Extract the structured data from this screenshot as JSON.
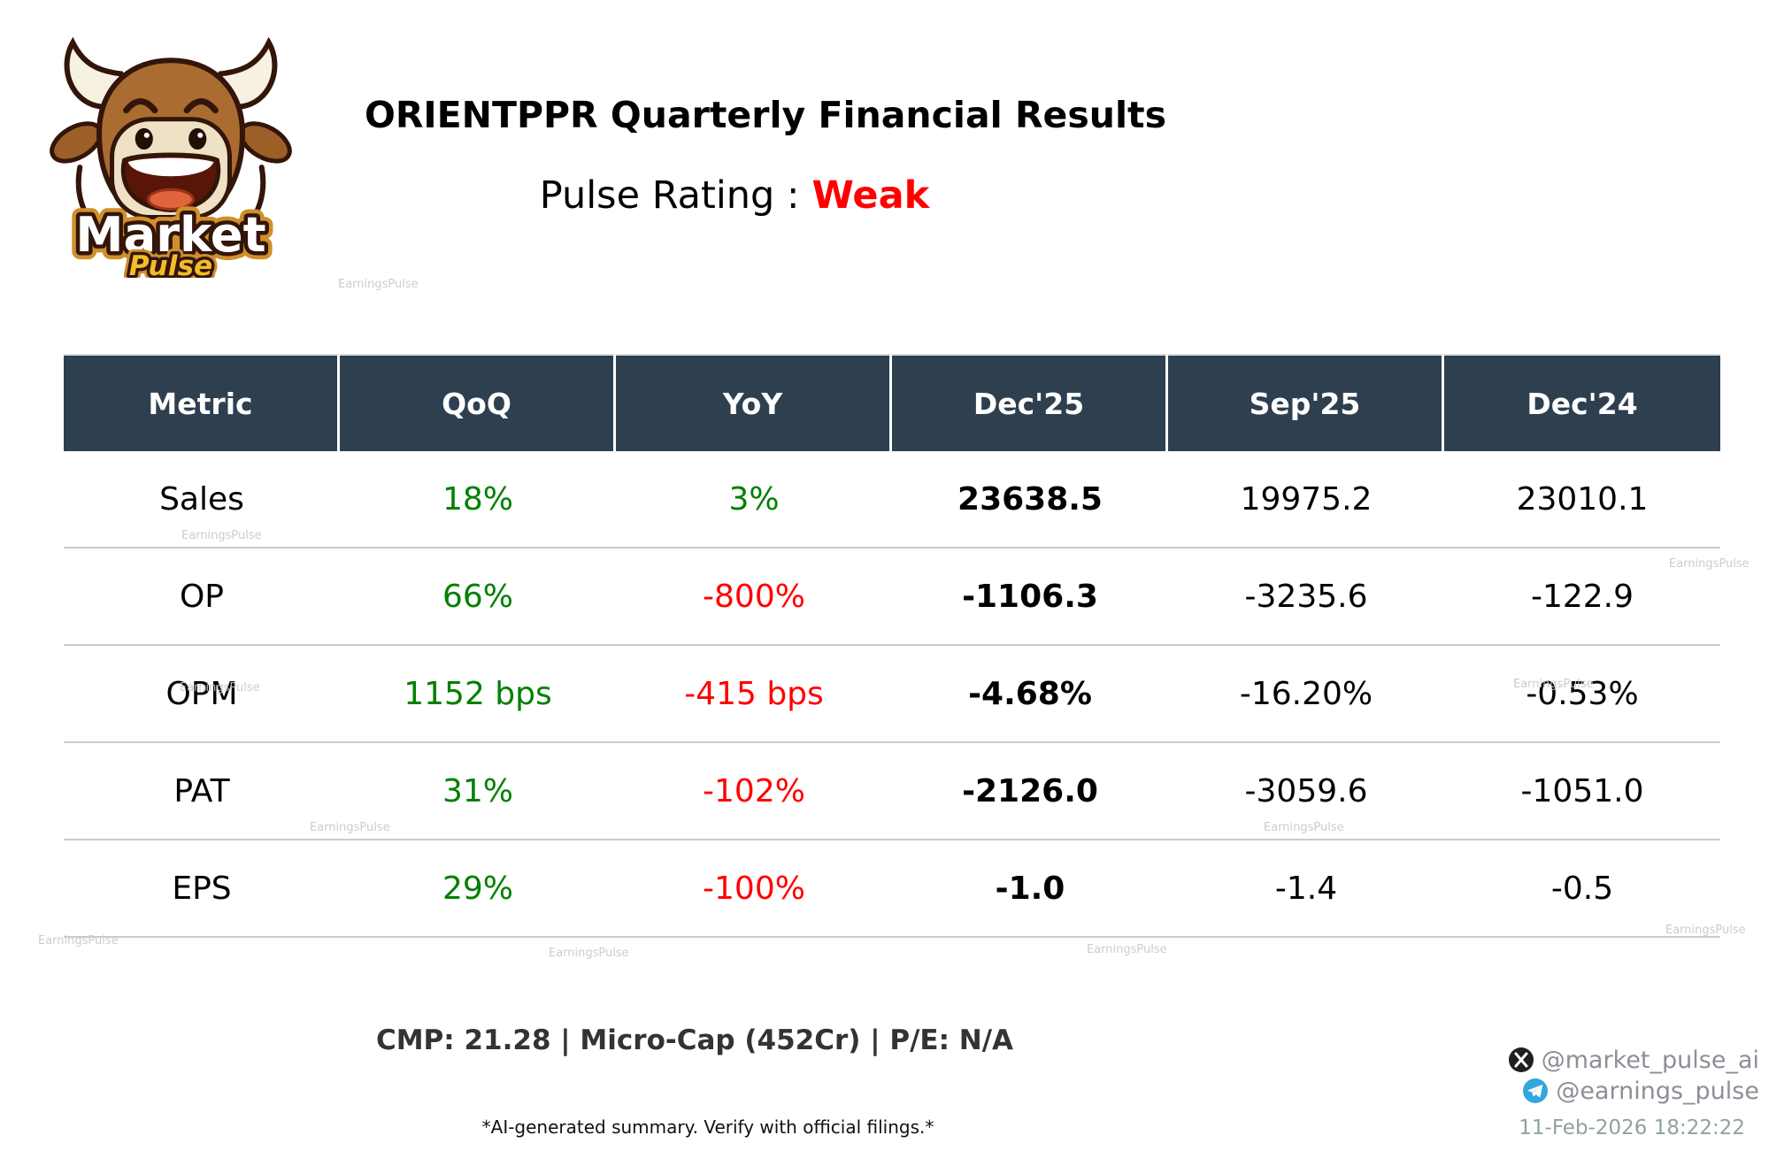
{
  "watermark": {
    "text": "EarningsPulse"
  },
  "header": {
    "title": "ORIENTPPR Quarterly Financial Results",
    "rating_label": "Pulse Rating :",
    "rating_value": "Weak",
    "rating_color": "#ff0000"
  },
  "logo": {
    "word1": "Market",
    "word2": "Pulse"
  },
  "chart_data": {
    "type": "table",
    "title": "ORIENTPPR Quarterly Financial Results",
    "columns": [
      "Metric",
      "QoQ",
      "YoY",
      "Dec'25",
      "Sep'25",
      "Dec'24"
    ],
    "rows": [
      [
        {
          "text": "Sales",
          "color": "black"
        },
        {
          "text": "18%",
          "color": "green"
        },
        {
          "text": "3%",
          "color": "green"
        },
        {
          "text": "23638.5",
          "color": "black",
          "bold": true
        },
        {
          "text": "19975.2",
          "color": "black"
        },
        {
          "text": "23010.1",
          "color": "black"
        }
      ],
      [
        {
          "text": "OP",
          "color": "black"
        },
        {
          "text": "66%",
          "color": "green"
        },
        {
          "text": "-800%",
          "color": "red"
        },
        {
          "text": "-1106.3",
          "color": "black",
          "bold": true
        },
        {
          "text": "-3235.6",
          "color": "black"
        },
        {
          "text": "-122.9",
          "color": "black"
        }
      ],
      [
        {
          "text": "OPM",
          "color": "black"
        },
        {
          "text": "1152 bps",
          "color": "green"
        },
        {
          "text": "-415 bps",
          "color": "red"
        },
        {
          "text": "-4.68%",
          "color": "black",
          "bold": true
        },
        {
          "text": "-16.20%",
          "color": "black"
        },
        {
          "text": "-0.53%",
          "color": "black"
        }
      ],
      [
        {
          "text": "PAT",
          "color": "black"
        },
        {
          "text": "31%",
          "color": "green"
        },
        {
          "text": "-102%",
          "color": "red"
        },
        {
          "text": "-2126.0",
          "color": "black",
          "bold": true
        },
        {
          "text": "-3059.6",
          "color": "black"
        },
        {
          "text": "-1051.0",
          "color": "black"
        }
      ],
      [
        {
          "text": "EPS",
          "color": "black"
        },
        {
          "text": "29%",
          "color": "green"
        },
        {
          "text": "-100%",
          "color": "red"
        },
        {
          "text": "-1.0",
          "color": "black",
          "bold": true
        },
        {
          "text": "-1.4",
          "color": "black"
        },
        {
          "text": "-0.5",
          "color": "black"
        }
      ]
    ],
    "palette": {
      "green": "#008000",
      "red": "#ff0000",
      "black": "#000000",
      "header_bg": "#2e3f50",
      "header_text": "#ffffff"
    },
    "legend_position": "none",
    "grid": "horizontal-separators-only"
  },
  "footer": {
    "summary": "CMP: 21.28 | Micro-Cap (452Cr) | P/E: N/A",
    "disclaimer": "*AI-generated summary. Verify with official filings.*"
  },
  "social": {
    "x_handle": "@market_pulse_ai",
    "telegram_handle": "@earnings_pulse",
    "timestamp": "11-Feb-2026 18:22:22"
  }
}
